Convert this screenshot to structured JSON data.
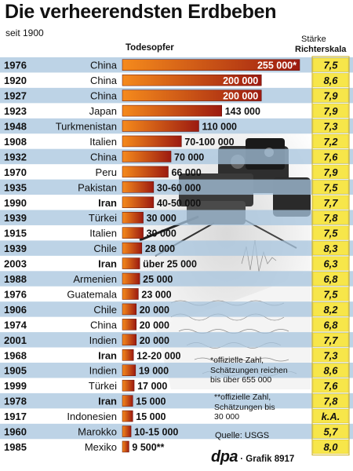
{
  "title": "Die verheerendsten Erdbeben",
  "subtitle": "seit 1900",
  "deaths_header": "Todesopfer",
  "magnitude_header_line1": "Stärke",
  "magnitude_header_line2": "Richterskala",
  "notes": {
    "note1_line1": "*offizielle Zahl,",
    "note1_line2": "Schätzungen reichen",
    "note1_line3": "bis über 655 000",
    "note2_line1": "**offizielle Zahl,",
    "note2_line2": "Schätzungen bis",
    "note2_line3": "30 000"
  },
  "source": "Quelle: USGS",
  "credit_dpa": "dpa",
  "credit_graphic": "Grafik 8917",
  "colors": {
    "row_band": "#a7c4dd",
    "magnitude_box": "#f7e64a",
    "bar_dark": "#9c1a10",
    "bar_light": "#f58a1c"
  },
  "chart_data": {
    "type": "bar",
    "title": "Die verheerendsten Erdbeben",
    "subtitle": "seit 1900",
    "value_label": "Todesopfer",
    "magnitude_label": "Stärke Richterskala",
    "rows": [
      {
        "year": "1976",
        "country": "China",
        "deaths": 255000,
        "label": "255 000*",
        "magnitude": "7,5"
      },
      {
        "year": "1920",
        "country": "China",
        "deaths": 200000,
        "label": "200 000",
        "magnitude": "8,6"
      },
      {
        "year": "1927",
        "country": "China",
        "deaths": 200000,
        "label": "200 000",
        "magnitude": "7,9"
      },
      {
        "year": "1923",
        "country": "Japan",
        "deaths": 143000,
        "label": "143 000",
        "magnitude": "7,9"
      },
      {
        "year": "1948",
        "country": "Turkmenistan",
        "deaths": 110000,
        "label": "110 000",
        "magnitude": "7,3"
      },
      {
        "year": "1908",
        "country": "Italien",
        "deaths": 85000,
        "label": "70-100 000",
        "magnitude": "7,2"
      },
      {
        "year": "1932",
        "country": "China",
        "deaths": 70000,
        "label": "70 000",
        "magnitude": "7,6"
      },
      {
        "year": "1970",
        "country": "Peru",
        "deaths": 66000,
        "label": "66 000",
        "magnitude": "7,9"
      },
      {
        "year": "1935",
        "country": "Pakistan",
        "deaths": 45000,
        "label": "30-60 000",
        "magnitude": "7,5"
      },
      {
        "year": "1990",
        "country": "Iran",
        "deaths": 45000,
        "label": "40-50 000",
        "magnitude": "7,7"
      },
      {
        "year": "1939",
        "country": "Türkei",
        "deaths": 30000,
        "label": "30 000",
        "magnitude": "7,8"
      },
      {
        "year": "1915",
        "country": "Italien",
        "deaths": 30000,
        "label": "30 000",
        "magnitude": "7,5"
      },
      {
        "year": "1939",
        "country": "Chile",
        "deaths": 28000,
        "label": "28 000",
        "magnitude": "8,3"
      },
      {
        "year": "2003",
        "country": "Iran",
        "deaths": 25000,
        "label": "über 25 000",
        "magnitude": "6,3"
      },
      {
        "year": "1988",
        "country": "Armenien",
        "deaths": 25000,
        "label": "25 000",
        "magnitude": "6,8"
      },
      {
        "year": "1976",
        "country": "Guatemala",
        "deaths": 23000,
        "label": "23 000",
        "magnitude": "7,5"
      },
      {
        "year": "1906",
        "country": "Chile",
        "deaths": 20000,
        "label": "20 000",
        "magnitude": "8,2"
      },
      {
        "year": "1974",
        "country": "China",
        "deaths": 20000,
        "label": "20 000",
        "magnitude": "6,8"
      },
      {
        "year": "2001",
        "country": "Indien",
        "deaths": 20000,
        "label": "20 000",
        "magnitude": "7,7"
      },
      {
        "year": "1968",
        "country": "Iran",
        "deaths": 16000,
        "label": "12-20 000",
        "magnitude": "7,3"
      },
      {
        "year": "1905",
        "country": "Indien",
        "deaths": 19000,
        "label": "19 000",
        "magnitude": "8,6"
      },
      {
        "year": "1999",
        "country": "Türkei",
        "deaths": 17000,
        "label": "17 000",
        "magnitude": "7,6"
      },
      {
        "year": "1978",
        "country": "Iran",
        "deaths": 15000,
        "label": "15 000",
        "magnitude": "7,8"
      },
      {
        "year": "1917",
        "country": "Indonesien",
        "deaths": 15000,
        "label": "15 000",
        "magnitude": "k.A."
      },
      {
        "year": "1960",
        "country": "Marokko",
        "deaths": 12500,
        "label": "10-15 000",
        "magnitude": "5,7"
      },
      {
        "year": "1985",
        "country": "Mexiko",
        "deaths": 9500,
        "label": "9 500**",
        "magnitude": "8,0"
      }
    ]
  }
}
